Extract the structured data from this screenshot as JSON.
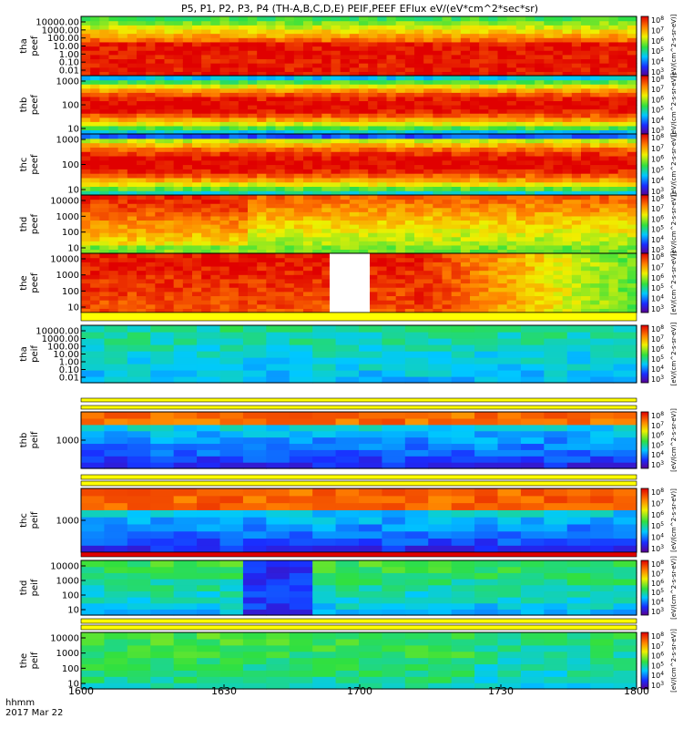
{
  "chart_data": {
    "type": "heatmap",
    "title": "P5, P1, P2, P3, P4 (TH-A,B,C,D,E) PEIF,PEEF EFlux eV/(eV*cm^2*sec*sr)",
    "x_axis": {
      "ticks": [
        "1600",
        "1630",
        "1700",
        "1730",
        "1800"
      ],
      "range_minutes": [
        0,
        120
      ],
      "corner_labels": [
        "hhmm",
        "2017 Mar 22"
      ]
    },
    "colorbar": {
      "ticks_exponent": [
        "3",
        "4",
        "5",
        "6",
        "7",
        "8"
      ],
      "base": "10",
      "label": "[eV/(cm^2-s-sr-eV)]"
    },
    "panels": [
      {
        "id": "tha_peef",
        "label_top": "tha",
        "label_bottom": "peef",
        "yticks": [
          "10000.00",
          "1000.00",
          "100.00",
          "10.00",
          "1.00",
          "0.10",
          "0.01"
        ]
      },
      {
        "id": "thb_peef",
        "label_top": "thb",
        "label_bottom": "peef",
        "yticks": [
          "1000",
          "100",
          "10"
        ]
      },
      {
        "id": "thc_peef",
        "label_top": "thc",
        "label_bottom": "peef",
        "yticks": [
          "1000",
          "100",
          "10"
        ]
      },
      {
        "id": "thd_peef",
        "label_top": "thd",
        "label_bottom": "peef",
        "yticks": [
          "10000",
          "1000",
          "100",
          "10"
        ]
      },
      {
        "id": "the_peef",
        "label_top": "the",
        "label_bottom": "peef",
        "yticks": [
          "10000",
          "1000",
          "100",
          "10"
        ]
      },
      {
        "id": "tha_peif",
        "label_top": "tha",
        "label_bottom": "peif",
        "yticks": [
          "10000.00",
          "1000.00",
          "100.00",
          "10.00",
          "1.00",
          "0.10",
          "0.01"
        ]
      },
      {
        "id": "thb_peif",
        "label_top": "thb",
        "label_bottom": "peif",
        "yticks": [
          "1000"
        ]
      },
      {
        "id": "thc_peif",
        "label_top": "thc",
        "label_bottom": "peif",
        "yticks": [
          "1000"
        ]
      },
      {
        "id": "thd_peif",
        "label_top": "thd",
        "label_bottom": "peif",
        "yticks": [
          "10000",
          "1000",
          "100",
          "10"
        ]
      },
      {
        "id": "the_peif",
        "label_top": "the",
        "label_bottom": "peif",
        "yticks": [
          "10000",
          "1000",
          "100",
          "10"
        ]
      }
    ]
  }
}
